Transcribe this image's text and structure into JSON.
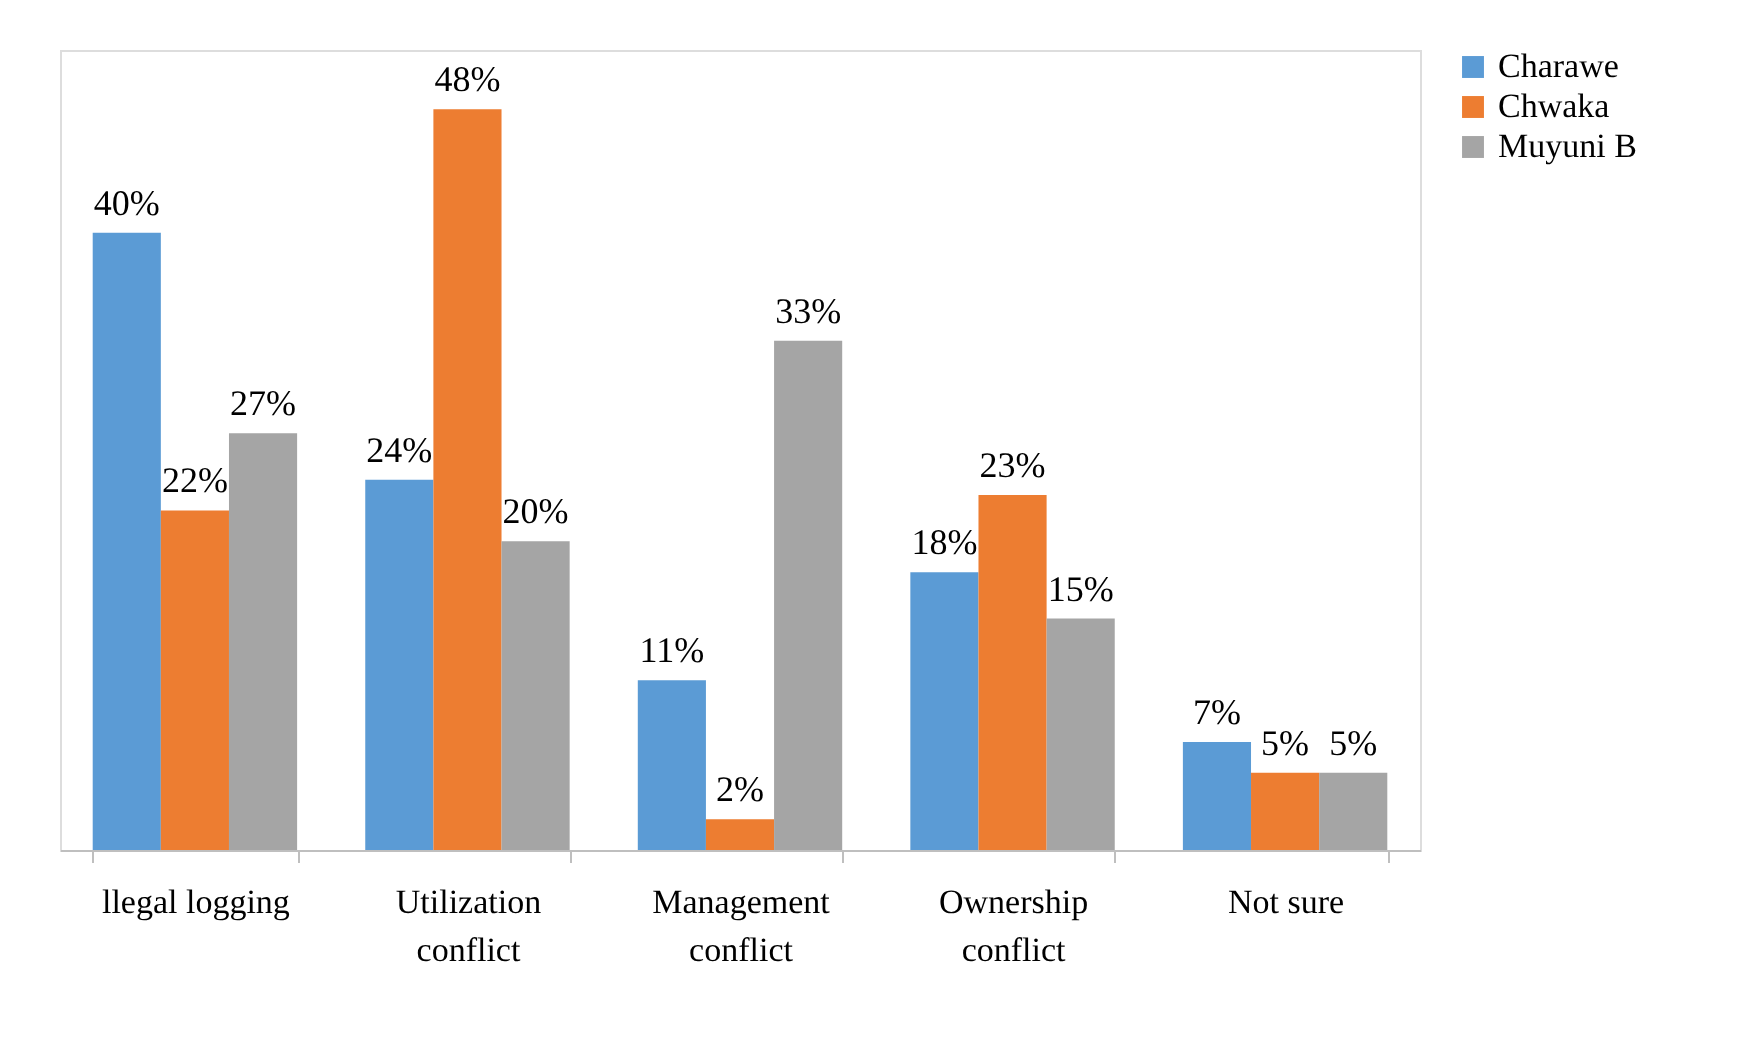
{
  "chart_data": {
    "type": "bar",
    "categories": [
      "llegal logging",
      "Utilization conflict",
      "Management conflict",
      "Ownership conflict",
      "Not sure"
    ],
    "series": [
      {
        "name": "Charawe",
        "color": "#5b9bd5",
        "values": [
          40,
          24,
          11,
          18,
          7
        ],
        "value_labels": [
          "40%",
          "24%",
          "11%",
          "18%",
          "7%"
        ]
      },
      {
        "name": "Chwaka",
        "color": "#ed7d31",
        "values": [
          22,
          48,
          2,
          23,
          5
        ],
        "value_labels": [
          "22%",
          "48%",
          "2%",
          "23%",
          "5%"
        ]
      },
      {
        "name": "Muyuni B",
        "color": "#a5a5a5",
        "values": [
          27,
          20,
          33,
          15,
          5
        ],
        "value_labels": [
          "27%",
          "20%",
          "33%",
          "15%",
          "5%"
        ]
      }
    ],
    "legend": "right",
    "grid": false
  }
}
